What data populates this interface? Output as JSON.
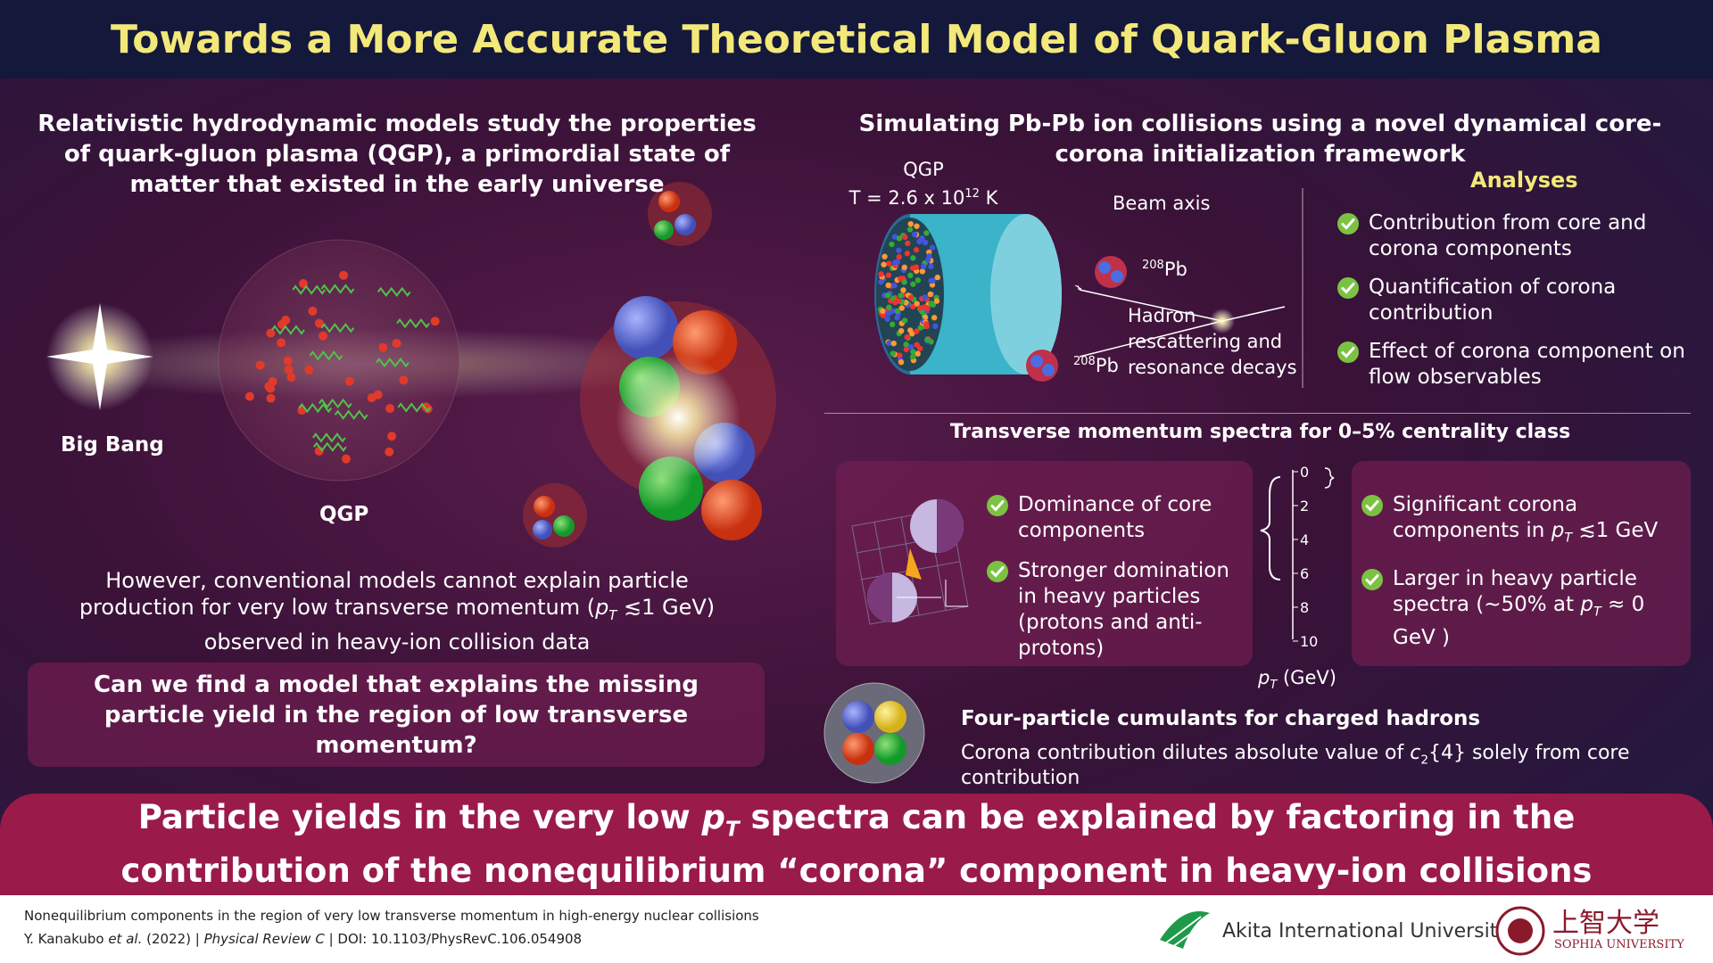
{
  "title": "Towards a More Accurate Theoretical Model of Quark-Gluon Plasma",
  "left": {
    "heading": "Relativistic hydrodynamic models study the properties of quark-gluon plasma (QGP), a primordial state of matter that existed in the early universe",
    "big_bang": "Big Bang",
    "qgp": "QGP",
    "problem": [
      "However, conventional models cannot explain particle production for very low transverse momentum (",
      "p",
      "T",
      " ≲1 GeV) observed in heavy-ion collision data"
    ],
    "question": "Can we find a model that explains the missing particle yield in the region of low transverse momentum?"
  },
  "right": {
    "heading": "Simulating Pb-Pb ion collisions using a novel dynamical core-corona initialization framework",
    "qgp_label": "QGP",
    "temperature": [
      "T = 2.6 x 10",
      "12",
      " K"
    ],
    "beam_axis": "Beam axis",
    "pb_top": [
      "208",
      "Pb"
    ],
    "pb_bottom": [
      "208",
      "Pb"
    ],
    "hadron": "Hadron rescattering and resonance decays",
    "analyses_title": "Analyses",
    "analyses": [
      "Contribution from core and corona components",
      "Quantification of corona contribution",
      "Effect of corona component on flow observables"
    ]
  },
  "spectra": {
    "heading": "Transverse momentum spectra for 0–5% centrality class",
    "left_points": [
      "Dominance of core components",
      "Stronger domination in heavy particles (protons and anti-protons)"
    ],
    "right_points": [
      [
        "Significant corona components in ",
        "p",
        "T",
        " ≲1 GeV"
      ],
      [
        "Larger in heavy particle spectra (~50% at ",
        "p",
        "T",
        " ≈ 0 GeV )"
      ]
    ],
    "axis_ticks": [
      "0",
      "2",
      "4",
      "6",
      "8",
      "10"
    ],
    "axis_label": [
      "p",
      "T",
      " (GeV)"
    ]
  },
  "cumulants": {
    "heading": "Four-particle cumulants for charged hadrons",
    "text": [
      "Corona contribution dilutes absolute value of ",
      "c",
      "2",
      "{4} solely from core contribution"
    ]
  },
  "conclusion": [
    "Particle yields in the very low ",
    "p",
    "T",
    " spectra can be explained by factoring in the contribution of the nonequilibrium “corona” component in heavy-ion collisions"
  ],
  "footer": {
    "paper_title": "Nonequilibrium components in the region of very low transverse momentum in high-energy nuclear collisions",
    "citation": [
      "Y. Kanakubo ",
      "et al.",
      " (2022) | ",
      "Physical Review C",
      " | DOI: 10.1103/PhysRevC.106.054908"
    ],
    "akita": "Akita International University",
    "sophia_jp": "上智大学",
    "sophia_en": "SOPHIA UNIVERSITY"
  }
}
